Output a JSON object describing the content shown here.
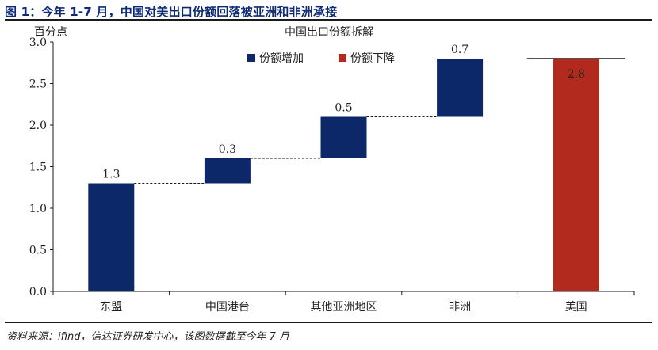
{
  "figure": {
    "title": "图 1：今年 1-7 月，中国对美出口份额回落被亚洲和非洲承接",
    "source": "资料来源：ifind，信达证券研发中心，该图数据截至今年 7 月"
  },
  "chart_data": {
    "type": "bar",
    "subtype": "waterfall",
    "title": "中国出口份额拆解",
    "ylabel": "百分点",
    "xlabel": "",
    "ylim": [
      0,
      3.0
    ],
    "yticks": [
      "0.0",
      "0.5",
      "1.0",
      "1.5",
      "2.0",
      "2.5",
      "3.0"
    ],
    "categories": [
      "东盟",
      "中国港台",
      "其他亚洲地区",
      "非洲",
      "美国"
    ],
    "series": [
      {
        "name": "份额增加",
        "color": "#0d2869",
        "bars": [
          {
            "category": "东盟",
            "start": 0,
            "end": 1.3,
            "label": "1.3"
          },
          {
            "category": "中国港台",
            "start": 1.3,
            "end": 1.6,
            "label": "0.3"
          },
          {
            "category": "其他亚洲地区",
            "start": 1.6,
            "end": 2.1,
            "label": "0.5"
          },
          {
            "category": "非洲",
            "start": 2.1,
            "end": 2.8,
            "label": "0.7"
          }
        ]
      },
      {
        "name": "份额下降",
        "color": "#b22a1e",
        "bars": [
          {
            "category": "美国",
            "start": 0,
            "end": 2.8,
            "label": "2.8"
          }
        ]
      }
    ],
    "total_line_value": 2.8,
    "connectors": true,
    "grid": false,
    "legend": "top-center"
  }
}
